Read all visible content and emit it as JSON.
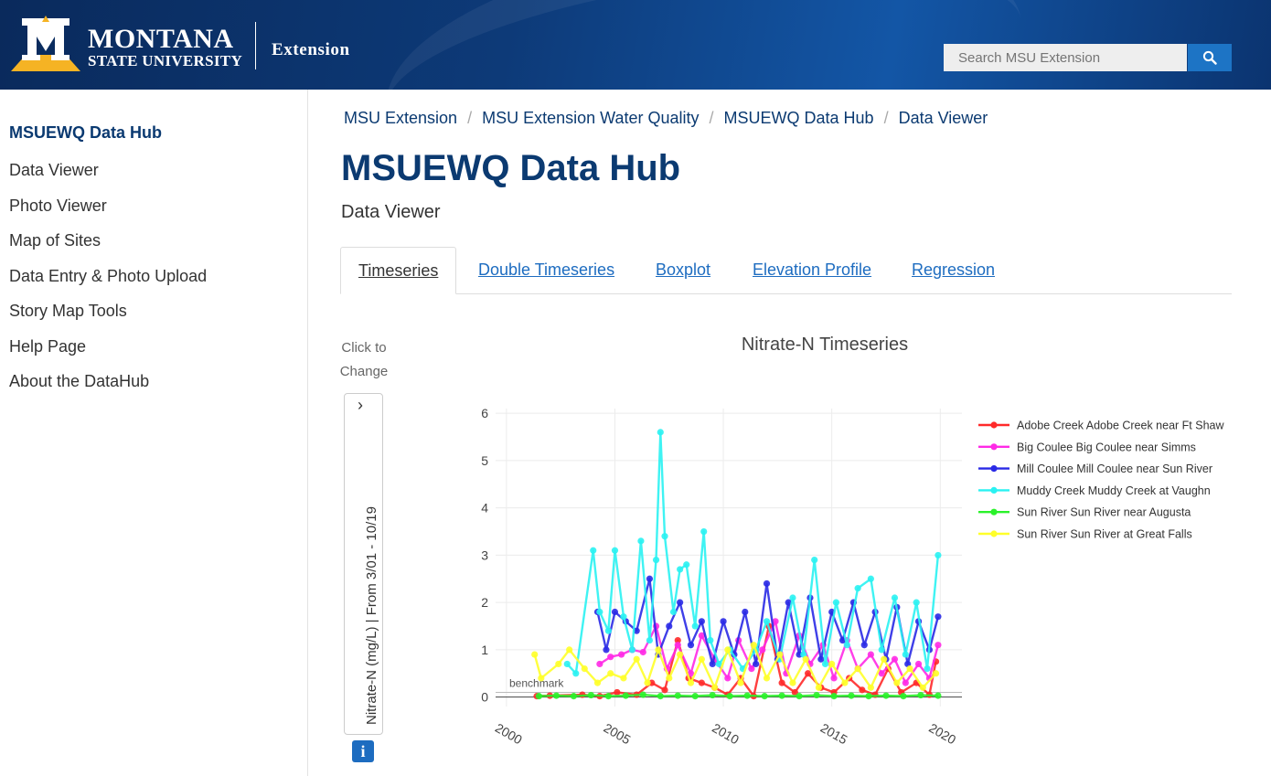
{
  "header": {
    "brand_line1": "MONTANA",
    "brand_line2": "STATE UNIVERSITY",
    "extension": "Extension",
    "search_placeholder": "Search MSU Extension",
    "colors": {
      "navy": "#0b3a71",
      "gold": "#f5b324",
      "search_blue": "#1d74c5"
    }
  },
  "sidebar": {
    "items": [
      {
        "label": "MSUEWQ Data Hub",
        "active": true
      },
      {
        "label": "Data Viewer"
      },
      {
        "label": "Photo Viewer"
      },
      {
        "label": "Map of Sites"
      },
      {
        "label": "Data Entry & Photo Upload"
      },
      {
        "label": "Story Map Tools"
      },
      {
        "label": "Help Page"
      },
      {
        "label": "About the DataHub"
      }
    ]
  },
  "breadcrumb": [
    "MSU Extension",
    "MSU Extension Water Quality",
    "MSUEWQ Data Hub",
    "Data Viewer"
  ],
  "page": {
    "title": "MSUEWQ Data Hub",
    "subtitle": "Data Viewer"
  },
  "tabs": [
    {
      "label": "Timeseries",
      "active": true
    },
    {
      "label": "Double Timeseries"
    },
    {
      "label": "Boxplot"
    },
    {
      "label": "Elevation Profile"
    },
    {
      "label": "Regression"
    }
  ],
  "yaxis_control": {
    "hint_line1": "Click to",
    "hint_line2": "Change",
    "chevron": "›",
    "label": "Nitrate-N (mg/L) | From 3/01 - 10/19",
    "info_icon": "i"
  },
  "chart_data": {
    "type": "line",
    "title": "Nitrate-N Timeseries",
    "xlim": [
      1999.5,
      2021.0
    ],
    "ylim": [
      -0.2,
      6.1
    ],
    "x_ticks": [
      2000,
      2005,
      2010,
      2015,
      2020
    ],
    "y_ticks": [
      0,
      1,
      2,
      3,
      4,
      5,
      6
    ],
    "grid": true,
    "legend": "right",
    "benchmark": {
      "label": "benchmark",
      "value": 0.1
    },
    "series": [
      {
        "name": "Adobe Creek Adobe Creek near Ft Shaw",
        "color": "#ff2a2a",
        "x": [
          2001.4,
          2002.0,
          2003.5,
          2004.3,
          2005.1,
          2006.0,
          2006.7,
          2007.3,
          2007.9,
          2008.4,
          2009.0,
          2009.6,
          2010.2,
          2010.8,
          2011.4,
          2012.1,
          2012.7,
          2013.3,
          2013.9,
          2014.5,
          2015.1,
          2015.8,
          2016.4,
          2017.0,
          2017.6,
          2018.2,
          2018.9,
          2019.5,
          2019.8
        ],
        "y": [
          0.02,
          0.03,
          0.05,
          0.02,
          0.1,
          0.05,
          0.3,
          0.15,
          1.2,
          0.4,
          0.3,
          0.2,
          0.05,
          0.4,
          0.02,
          1.5,
          0.3,
          0.1,
          0.5,
          0.2,
          0.1,
          0.4,
          0.15,
          0.05,
          0.6,
          0.1,
          0.3,
          0.05,
          0.75
        ]
      },
      {
        "name": "Big Coulee Big Coulee near Simms",
        "color": "#ff2ae6",
        "x": [
          2004.3,
          2004.8,
          2005.3,
          2005.8,
          2006.3,
          2006.9,
          2007.4,
          2007.9,
          2008.5,
          2009.0,
          2009.6,
          2010.2,
          2010.7,
          2011.3,
          2011.8,
          2012.4,
          2012.9,
          2013.5,
          2014.0,
          2014.6,
          2015.1,
          2015.7,
          2016.2,
          2016.8,
          2017.3,
          2017.9,
          2018.4,
          2019.0,
          2019.5,
          2019.9
        ],
        "y": [
          0.7,
          0.85,
          0.9,
          1.0,
          0.95,
          1.5,
          0.6,
          1.1,
          0.5,
          1.3,
          0.8,
          0.4,
          1.2,
          0.6,
          1.0,
          1.6,
          0.5,
          1.3,
          0.7,
          1.1,
          0.4,
          1.2,
          0.6,
          0.9,
          0.5,
          0.8,
          0.3,
          0.7,
          0.4,
          1.1
        ]
      },
      {
        "name": "Mill Coulee Mill Coulee near Sun River",
        "color": "#2a2ae6",
        "x": [
          2004.2,
          2004.6,
          2005.0,
          2005.5,
          2006.0,
          2006.6,
          2007.0,
          2007.5,
          2008.0,
          2008.5,
          2009.0,
          2009.5,
          2010.0,
          2010.5,
          2011.0,
          2011.5,
          2012.0,
          2012.5,
          2013.0,
          2013.5,
          2014.0,
          2014.5,
          2015.0,
          2015.5,
          2016.0,
          2016.5,
          2017.0,
          2017.5,
          2018.0,
          2018.5,
          2019.0,
          2019.5,
          2019.9
        ],
        "y": [
          1.8,
          1.0,
          1.8,
          1.6,
          1.4,
          2.5,
          0.9,
          1.5,
          2.0,
          1.1,
          1.6,
          0.7,
          1.6,
          0.9,
          1.8,
          0.7,
          2.4,
          0.8,
          2.0,
          0.9,
          2.1,
          0.8,
          1.8,
          1.2,
          2.0,
          1.1,
          1.8,
          0.8,
          1.9,
          0.7,
          1.6,
          1.0,
          1.7
        ]
      },
      {
        "name": "Muddy Creek Muddy Creek at Vaughn",
        "color": "#2af2f2",
        "x": [
          2002.8,
          2003.2,
          2004.0,
          2004.3,
          2004.7,
          2005.0,
          2005.4,
          2005.8,
          2006.2,
          2006.6,
          2006.9,
          2007.1,
          2007.3,
          2007.7,
          2008.0,
          2008.3,
          2008.7,
          2009.1,
          2009.4,
          2009.8,
          2010.3,
          2010.9,
          2011.5,
          2012.0,
          2012.6,
          2013.2,
          2013.7,
          2014.2,
          2014.7,
          2015.2,
          2015.7,
          2016.2,
          2016.8,
          2017.3,
          2017.9,
          2018.4,
          2018.9,
          2019.4,
          2019.9
        ],
        "y": [
          0.7,
          0.5,
          3.1,
          1.8,
          1.4,
          3.1,
          1.7,
          1.0,
          3.3,
          1.2,
          2.9,
          5.6,
          3.4,
          1.8,
          2.7,
          2.8,
          1.5,
          3.5,
          1.2,
          0.7,
          1.0,
          0.6,
          1.0,
          1.6,
          0.8,
          2.1,
          0.9,
          2.9,
          0.7,
          2.0,
          1.1,
          2.3,
          2.5,
          1.0,
          2.1,
          0.9,
          2.0,
          0.6,
          3.0
        ]
      },
      {
        "name": "Sun River Sun River near Augusta",
        "color": "#2af22a",
        "x": [
          2001.5,
          2002.3,
          2003.1,
          2003.9,
          2004.7,
          2005.5,
          2006.3,
          2007.1,
          2007.9,
          2008.7,
          2009.5,
          2010.3,
          2011.1,
          2011.9,
          2012.7,
          2013.5,
          2014.3,
          2015.1,
          2015.9,
          2016.7,
          2017.5,
          2018.3,
          2019.1,
          2019.9
        ],
        "y": [
          0.02,
          0.03,
          0.02,
          0.04,
          0.02,
          0.03,
          0.05,
          0.02,
          0.03,
          0.02,
          0.04,
          0.02,
          0.03,
          0.02,
          0.03,
          0.02,
          0.04,
          0.02,
          0.03,
          0.02,
          0.03,
          0.02,
          0.04,
          0.03
        ]
      },
      {
        "name": "Sun River Sun River at Great Falls",
        "color": "#ffff2a",
        "x": [
          2001.3,
          2001.6,
          2002.4,
          2002.9,
          2003.6,
          2004.2,
          2004.8,
          2005.4,
          2006.0,
          2006.5,
          2007.0,
          2007.5,
          2008.0,
          2008.5,
          2009.0,
          2009.6,
          2010.2,
          2010.8,
          2011.4,
          2012.0,
          2012.6,
          2013.2,
          2013.8,
          2014.4,
          2015.0,
          2015.6,
          2016.2,
          2016.8,
          2017.4,
          2018.0,
          2018.6,
          2019.2,
          2019.8
        ],
        "y": [
          0.9,
          0.4,
          0.7,
          1.0,
          0.6,
          0.3,
          0.5,
          0.4,
          0.8,
          0.3,
          1.0,
          0.4,
          0.9,
          0.3,
          0.8,
          0.2,
          1.0,
          0.3,
          1.1,
          0.4,
          0.9,
          0.3,
          0.8,
          0.2,
          0.7,
          0.3,
          0.6,
          0.2,
          0.8,
          0.3,
          0.6,
          0.2,
          0.5
        ]
      }
    ]
  }
}
